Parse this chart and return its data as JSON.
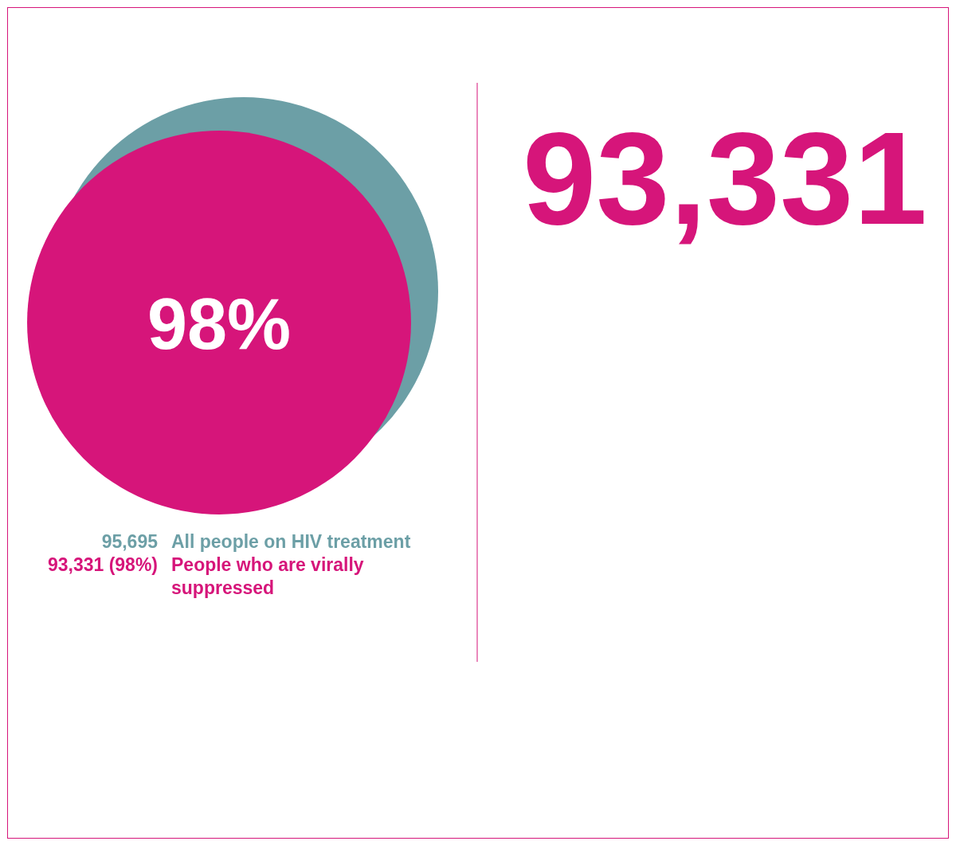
{
  "chart_data": [
    {
      "type": "other",
      "categories": [
        "All people on HIV treatment",
        "People who are virally suppressed"
      ],
      "values": [
        95695,
        93331
      ],
      "value_labels": [
        "95,695",
        "93,331 (98%)"
      ],
      "colors": [
        "#6c9fa6",
        "#d6157a"
      ],
      "annotations": [
        "98%"
      ]
    },
    {
      "type": "other",
      "title": "93,331"
    }
  ]
}
